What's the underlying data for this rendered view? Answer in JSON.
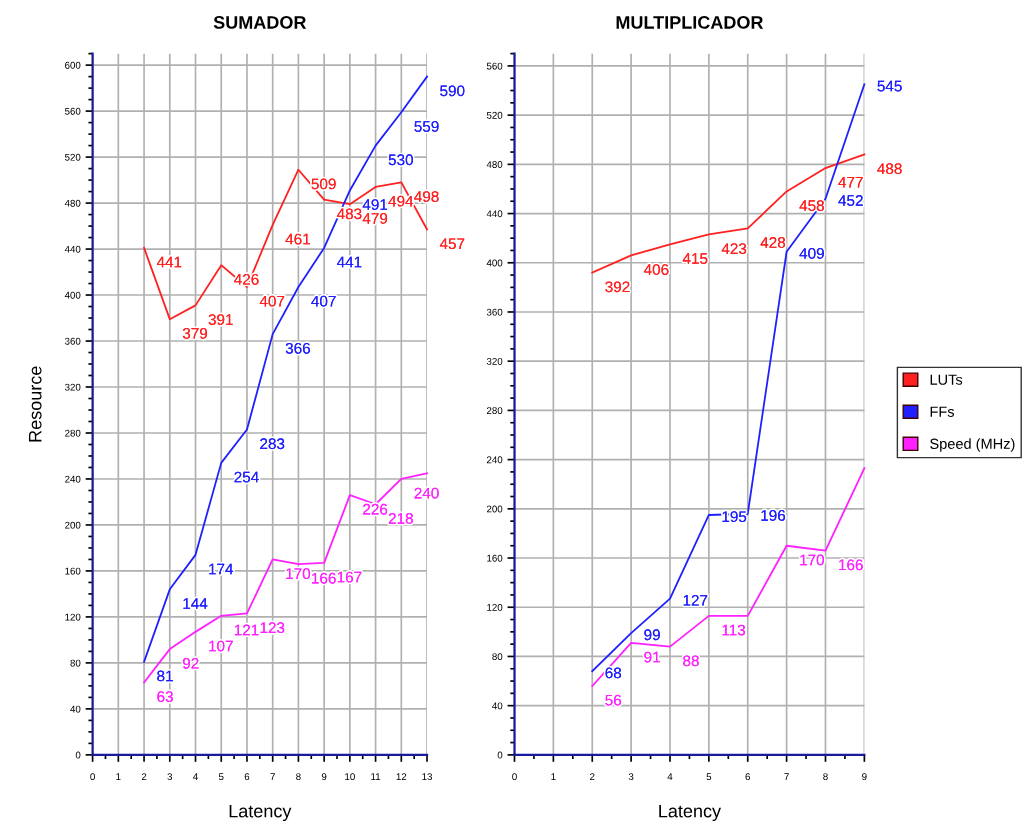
{
  "chart_data": [
    {
      "type": "line",
      "title": "SUMADOR",
      "xlabel": "Latency",
      "ylabel": "Resource",
      "x": [
        2,
        3,
        4,
        5,
        6,
        7,
        8,
        9,
        10,
        11,
        12,
        13
      ],
      "xlim": [
        0,
        13
      ],
      "xticks": [
        0,
        1,
        2,
        3,
        4,
        5,
        6,
        7,
        8,
        9,
        10,
        11,
        12,
        13
      ],
      "ylim": [
        0,
        610
      ],
      "yticks": [
        0,
        40,
        80,
        120,
        160,
        200,
        240,
        280,
        320,
        360,
        400,
        440,
        480,
        520,
        560,
        600
      ],
      "grid": true,
      "marker": "none",
      "line_style": "solid",
      "legend": "right",
      "series": [
        {
          "name": "LUTs",
          "color": "#ff2020",
          "values": [
            441,
            379,
            391,
            426,
            407,
            461,
            509,
            483,
            479,
            494,
            498,
            457
          ],
          "value_labels": [
            "441",
            "379",
            "391",
            "426",
            "407",
            "461",
            "509",
            "483",
            "479",
            "494",
            "498",
            "457"
          ]
        },
        {
          "name": "FFs",
          "color": "#2020ff",
          "values": [
            81,
            144,
            174,
            254,
            283,
            366,
            407,
            441,
            491,
            530,
            559,
            590
          ],
          "value_labels": [
            "81",
            "144",
            "174",
            "254",
            "283",
            "366",
            "407",
            "441",
            "491",
            "530",
            "559",
            "590"
          ]
        },
        {
          "name": "Speed (MHz)",
          "color": "#ff20ff",
          "values": [
            63,
            92,
            107,
            121,
            123,
            170,
            166,
            167,
            226,
            218,
            240,
            245
          ],
          "value_labels": [
            "63",
            "92",
            "107",
            "121",
            "123",
            "170",
            "166",
            "167",
            "226",
            "218",
            "240",
            null
          ]
        }
      ]
    },
    {
      "type": "line",
      "title": "MULTIPLICADOR",
      "xlabel": "Latency",
      "x": [
        2,
        3,
        4,
        5,
        6,
        7,
        8,
        9
      ],
      "xlim": [
        0,
        9
      ],
      "xticks": [
        0,
        1,
        2,
        3,
        4,
        5,
        6,
        7,
        8,
        9
      ],
      "ylim": [
        0,
        570
      ],
      "yticks": [
        0,
        40,
        80,
        120,
        160,
        200,
        240,
        280,
        320,
        360,
        400,
        440,
        480,
        520,
        560
      ],
      "grid": true,
      "marker": "none",
      "line_style": "solid",
      "series": [
        {
          "color": "#ff2020",
          "values": [
            392,
            406,
            415,
            423,
            428,
            458,
            477,
            488
          ],
          "value_labels": [
            "392",
            "406",
            "415",
            "423",
            "428",
            "458",
            "477",
            "488"
          ]
        },
        {
          "color": "#2020ff",
          "values": [
            68,
            99,
            127,
            195,
            196,
            409,
            452,
            545
          ],
          "value_labels": [
            "68",
            "99",
            "127",
            "195",
            "196",
            "409",
            "452",
            "545"
          ]
        },
        {
          "color": "#ff20ff",
          "values": [
            56,
            91,
            88,
            113,
            113,
            170,
            166,
            233
          ],
          "value_labels": [
            "56",
            "91",
            "88",
            "113",
            null,
            "170",
            "166",
            null
          ]
        }
      ]
    }
  ]
}
